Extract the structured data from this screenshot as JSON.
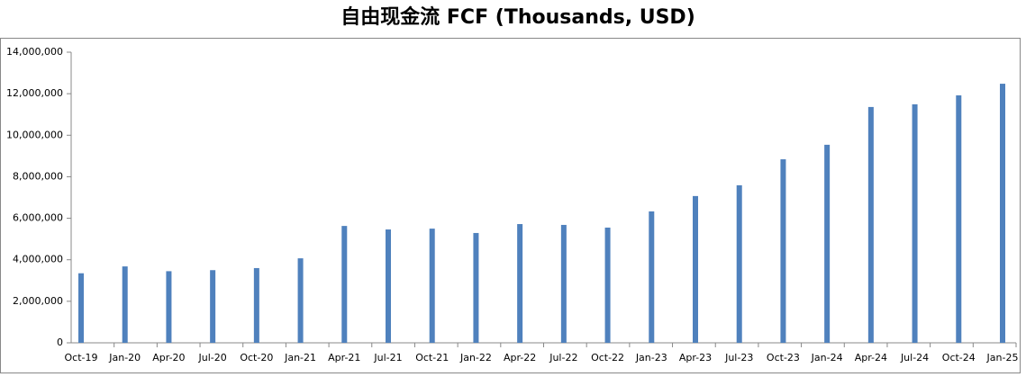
{
  "chart_data": {
    "type": "bar",
    "title": "自由现金流 FCF (Thousands, USD)",
    "categories": [
      "Oct-19",
      "Jan-20",
      "Apr-20",
      "Jul-20",
      "Oct-20",
      "Jan-21",
      "Apr-21",
      "Jul-21",
      "Oct-21",
      "Jan-22",
      "Apr-22",
      "Jul-22",
      "Oct-22",
      "Jan-23",
      "Apr-23",
      "Jul-23",
      "Oct-23",
      "Jan-24",
      "Apr-24",
      "Jul-24",
      "Oct-24",
      "Jan-25"
    ],
    "values": [
      3350000,
      3680000,
      3450000,
      3500000,
      3600000,
      4070000,
      5630000,
      5460000,
      5500000,
      5290000,
      5720000,
      5680000,
      5550000,
      6330000,
      7070000,
      7590000,
      8840000,
      9540000,
      11360000,
      11490000,
      11920000,
      12480000
    ],
    "color": "#4f81bd",
    "ylim": [
      0,
      14000000
    ],
    "yticks": [
      0,
      {
        "value": 2000000,
        "label": "2,000,000"
      },
      {
        "value": 4000000,
        "label": "4,000,000"
      },
      {
        "value": 6000000,
        "label": "6,000,000"
      },
      {
        "value": 8000000,
        "label": "8,000,000"
      },
      {
        "value": 10000000,
        "label": "10,000,000"
      },
      {
        "value": 12000000,
        "label": "12,000,000"
      },
      {
        "value": 14000000,
        "label": "14,000,000"
      }
    ],
    "grid": false
  }
}
